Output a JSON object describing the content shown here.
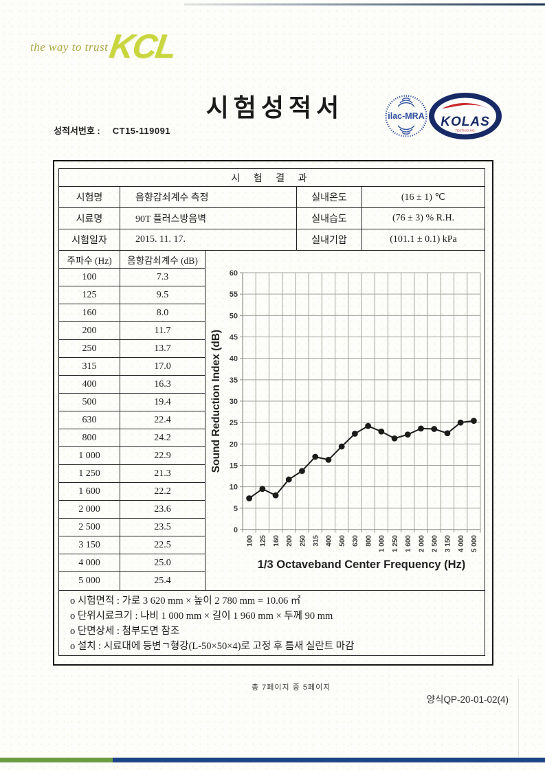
{
  "header": {
    "tagline": "the way to trust",
    "logo_text": "KCL",
    "title": "시험성적서",
    "report_no_label": "성적서번호 :",
    "report_no": "CT15-119091"
  },
  "logos": {
    "ilac": "ilac-MRA",
    "kolas": "KOLAS",
    "kolas_ring": "KOREA LABORATORY ACCREDITATION SCHEME",
    "kolas_sub": "TESTING NO."
  },
  "results": {
    "header": "시 험 결 과",
    "info_rows": [
      {
        "label": "시험명",
        "value": "음향감쇠계수 측정",
        "label2": "실내온도",
        "value2": "(16 ± 1) ℃"
      },
      {
        "label": "시료명",
        "value": "90T 플러스방음벽",
        "label2": "실내습도",
        "value2": "(76 ± 3) % R.H."
      },
      {
        "label": "시험일자",
        "value": "2015. 11. 17.",
        "label2": "실내기압",
        "value2": "(101.1 ± 0.1) kPa"
      }
    ],
    "freq_table": {
      "col1": "주파수 (Hz)",
      "col2": "음향감쇠계수 (dB)",
      "rows": [
        [
          "100",
          "7.3"
        ],
        [
          "125",
          "9.5"
        ],
        [
          "160",
          "8.0"
        ],
        [
          "200",
          "11.7"
        ],
        [
          "250",
          "13.7"
        ],
        [
          "315",
          "17.0"
        ],
        [
          "400",
          "16.3"
        ],
        [
          "500",
          "19.4"
        ],
        [
          "630",
          "22.4"
        ],
        [
          "800",
          "24.2"
        ],
        [
          "1 000",
          "22.9"
        ],
        [
          "1 250",
          "21.3"
        ],
        [
          "1 600",
          "22.2"
        ],
        [
          "2 000",
          "23.6"
        ],
        [
          "2 500",
          "23.5"
        ],
        [
          "3 150",
          "22.5"
        ],
        [
          "4 000",
          "25.0"
        ],
        [
          "5 000",
          "25.4"
        ]
      ]
    },
    "notes": [
      "o 시험면적 : 가로 3 620 mm × 높이 2 780 mm = 10.06 ㎡",
      "o 단위시료크기 : 나비 1 000 mm × 길이 1 960 mm × 두께 90 mm",
      "o 단면상세 : 첨부도면 참조",
      "o 설치 : 시료대에 등변ㄱ형강(L-50×50×4)로 고정 후 틈새 실란트 마감"
    ]
  },
  "chart_data": {
    "type": "line",
    "categories": [
      "100",
      "125",
      "160",
      "200",
      "250",
      "315",
      "400",
      "500",
      "630",
      "800",
      "1 000",
      "1 250",
      "1 600",
      "2 000",
      "2 500",
      "3 150",
      "4 000",
      "5 000"
    ],
    "values": [
      7.3,
      9.5,
      8.0,
      11.7,
      13.7,
      17.0,
      16.3,
      19.4,
      22.4,
      24.2,
      22.9,
      21.3,
      22.2,
      23.6,
      23.5,
      22.5,
      25.0,
      25.4
    ],
    "title": "",
    "xlabel": "1/3 Octaveband Center Frequency (Hz)",
    "ylabel": "Sound Reduction Index (dB)",
    "ylim": [
      0,
      60
    ],
    "ytick_step": 5,
    "grid": true,
    "legend": "none",
    "marker": "circle",
    "line_color": "#1b1b1b",
    "grid_color": "#a3a39b"
  },
  "footer": {
    "page_text": "총 7페이지 중 5페이지",
    "form_text": "양식QP-20-01-02(4)"
  },
  "colors": {
    "accent_green": "#6b9c42",
    "accent_navy": "#1c4586",
    "brand_yellow": "#c9d63e",
    "ilac_blue": "#2e4f9e",
    "kolas_navy": "#172a66",
    "kolas_red": "#c9272c"
  }
}
